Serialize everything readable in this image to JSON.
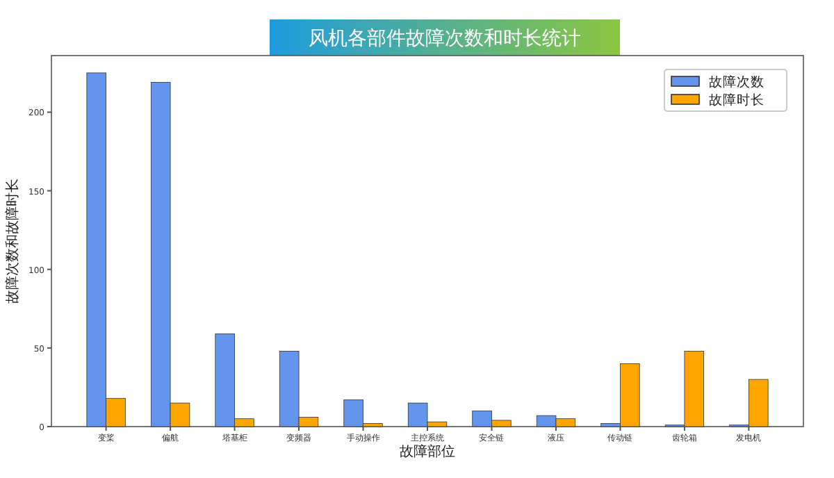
{
  "chart_data": {
    "type": "bar",
    "title": "风机各部件故障次数和时长统计",
    "xlabel": "故障部位",
    "ylabel": "故障次数和故障时长",
    "categories": [
      "变桨",
      "偏航",
      "塔基柜",
      "变频器",
      "手动操作",
      "主控系统",
      "安全链",
      "液压",
      "传动链",
      "齿轮箱",
      "发电机"
    ],
    "series": [
      {
        "name": "故障次数",
        "color": "#6495ed",
        "values": [
          225,
          219,
          59,
          48,
          17,
          15,
          10,
          7,
          2,
          1,
          1
        ]
      },
      {
        "name": "故障时长",
        "color": "#ffa500",
        "values": [
          18,
          15,
          5,
          6,
          2,
          3,
          4,
          5,
          40,
          48,
          30
        ]
      }
    ],
    "ylim": [
      0,
      236
    ],
    "yticks": [
      0,
      50,
      100,
      150,
      200
    ],
    "legend": "top right",
    "grid": false
  }
}
